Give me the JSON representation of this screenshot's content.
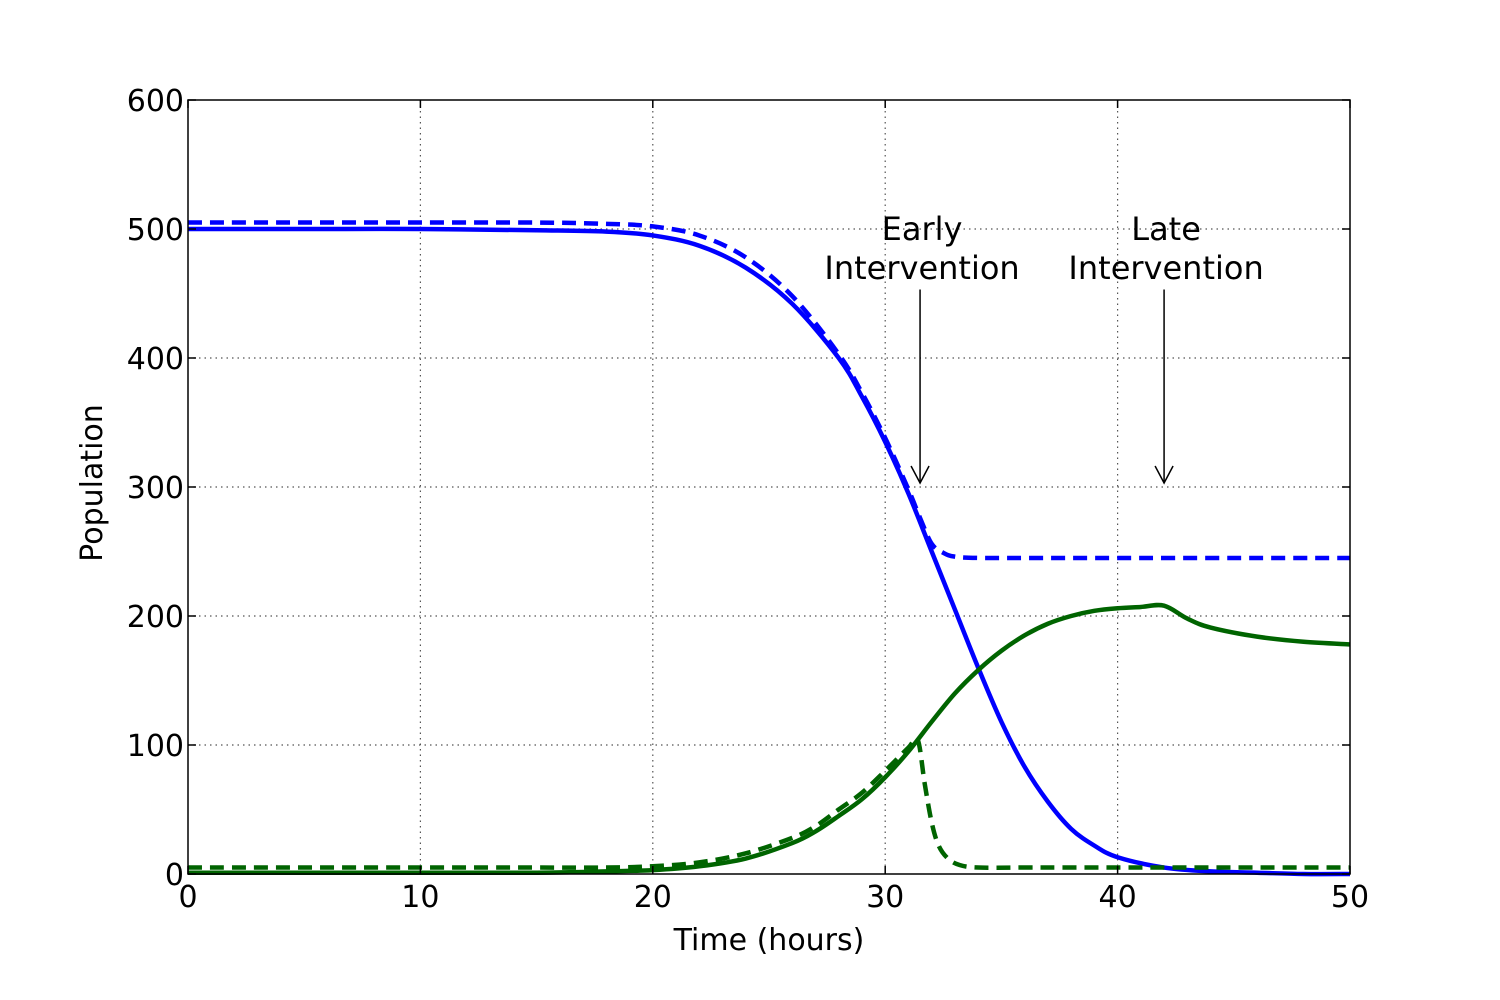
{
  "chart_data": {
    "type": "line",
    "title": "",
    "xlabel": "Time (hours)",
    "ylabel": "Population",
    "xlim": [
      0,
      50
    ],
    "ylim": [
      0,
      600
    ],
    "xticks": [
      0,
      10,
      20,
      30,
      40,
      50
    ],
    "yticks": [
      0,
      100,
      200,
      300,
      400,
      500,
      600
    ],
    "grid": true,
    "legend": "none",
    "series": [
      {
        "color": "#0000ff",
        "style": "solid",
        "x": [
          0,
          5,
          10,
          15,
          18,
          20,
          22,
          24,
          26,
          28,
          29,
          30,
          31,
          32,
          33,
          34,
          35,
          36,
          37,
          38,
          39,
          40,
          42,
          44,
          46,
          48,
          50
        ],
        "y": [
          500,
          500,
          500,
          499,
          498,
          495,
          487,
          470,
          442,
          400,
          370,
          335,
          295,
          250,
          205,
          160,
          118,
          83,
          56,
          35,
          22,
          13,
          5,
          2,
          1,
          0,
          0
        ]
      },
      {
        "color": "#0000ff",
        "style": "dashed",
        "x": [
          0,
          5,
          10,
          15,
          18,
          20,
          22,
          24,
          26,
          28,
          29,
          30,
          31,
          31.5,
          32,
          32.5,
          33,
          34,
          36,
          40,
          45,
          50
        ],
        "y": [
          505,
          505,
          505,
          505,
          504,
          502,
          495,
          478,
          448,
          403,
          373,
          338,
          298,
          276,
          256,
          249,
          246,
          245,
          245,
          245,
          245,
          245
        ]
      },
      {
        "color": "#006400",
        "style": "solid",
        "x": [
          0,
          10,
          15,
          18,
          20,
          22,
          24,
          26,
          27,
          28,
          29,
          30,
          31,
          32,
          33,
          34,
          35,
          36,
          37,
          38,
          39,
          40,
          41,
          42,
          43,
          44,
          46,
          48,
          50
        ],
        "y": [
          1,
          1,
          1,
          2,
          3,
          6,
          12,
          24,
          33,
          45,
          58,
          75,
          95,
          118,
          140,
          158,
          173,
          185,
          194,
          200,
          204,
          206,
          207,
          208,
          198,
          191,
          184,
          180,
          178
        ]
      },
      {
        "color": "#006400",
        "style": "dashed",
        "x": [
          0,
          10,
          15,
          18,
          20,
          22,
          24,
          26,
          27,
          28,
          29,
          30,
          31,
          31.4,
          31.7,
          32,
          32.3,
          32.7,
          33.2,
          34,
          36,
          40,
          50
        ],
        "y": [
          5,
          5,
          5,
          5,
          6,
          9,
          16,
          28,
          37,
          50,
          63,
          80,
          98,
          104,
          70,
          40,
          22,
          12,
          7,
          5,
          5,
          5,
          5
        ]
      }
    ],
    "annotations": [
      {
        "lines": [
          "Early",
          "Intervention"
        ],
        "x": 31.5,
        "arrow_from_y": 450,
        "arrow_to_y": 300
      },
      {
        "lines": [
          "Late",
          "Intervention"
        ],
        "x": 42,
        "arrow_from_y": 450,
        "arrow_to_y": 300
      }
    ]
  }
}
